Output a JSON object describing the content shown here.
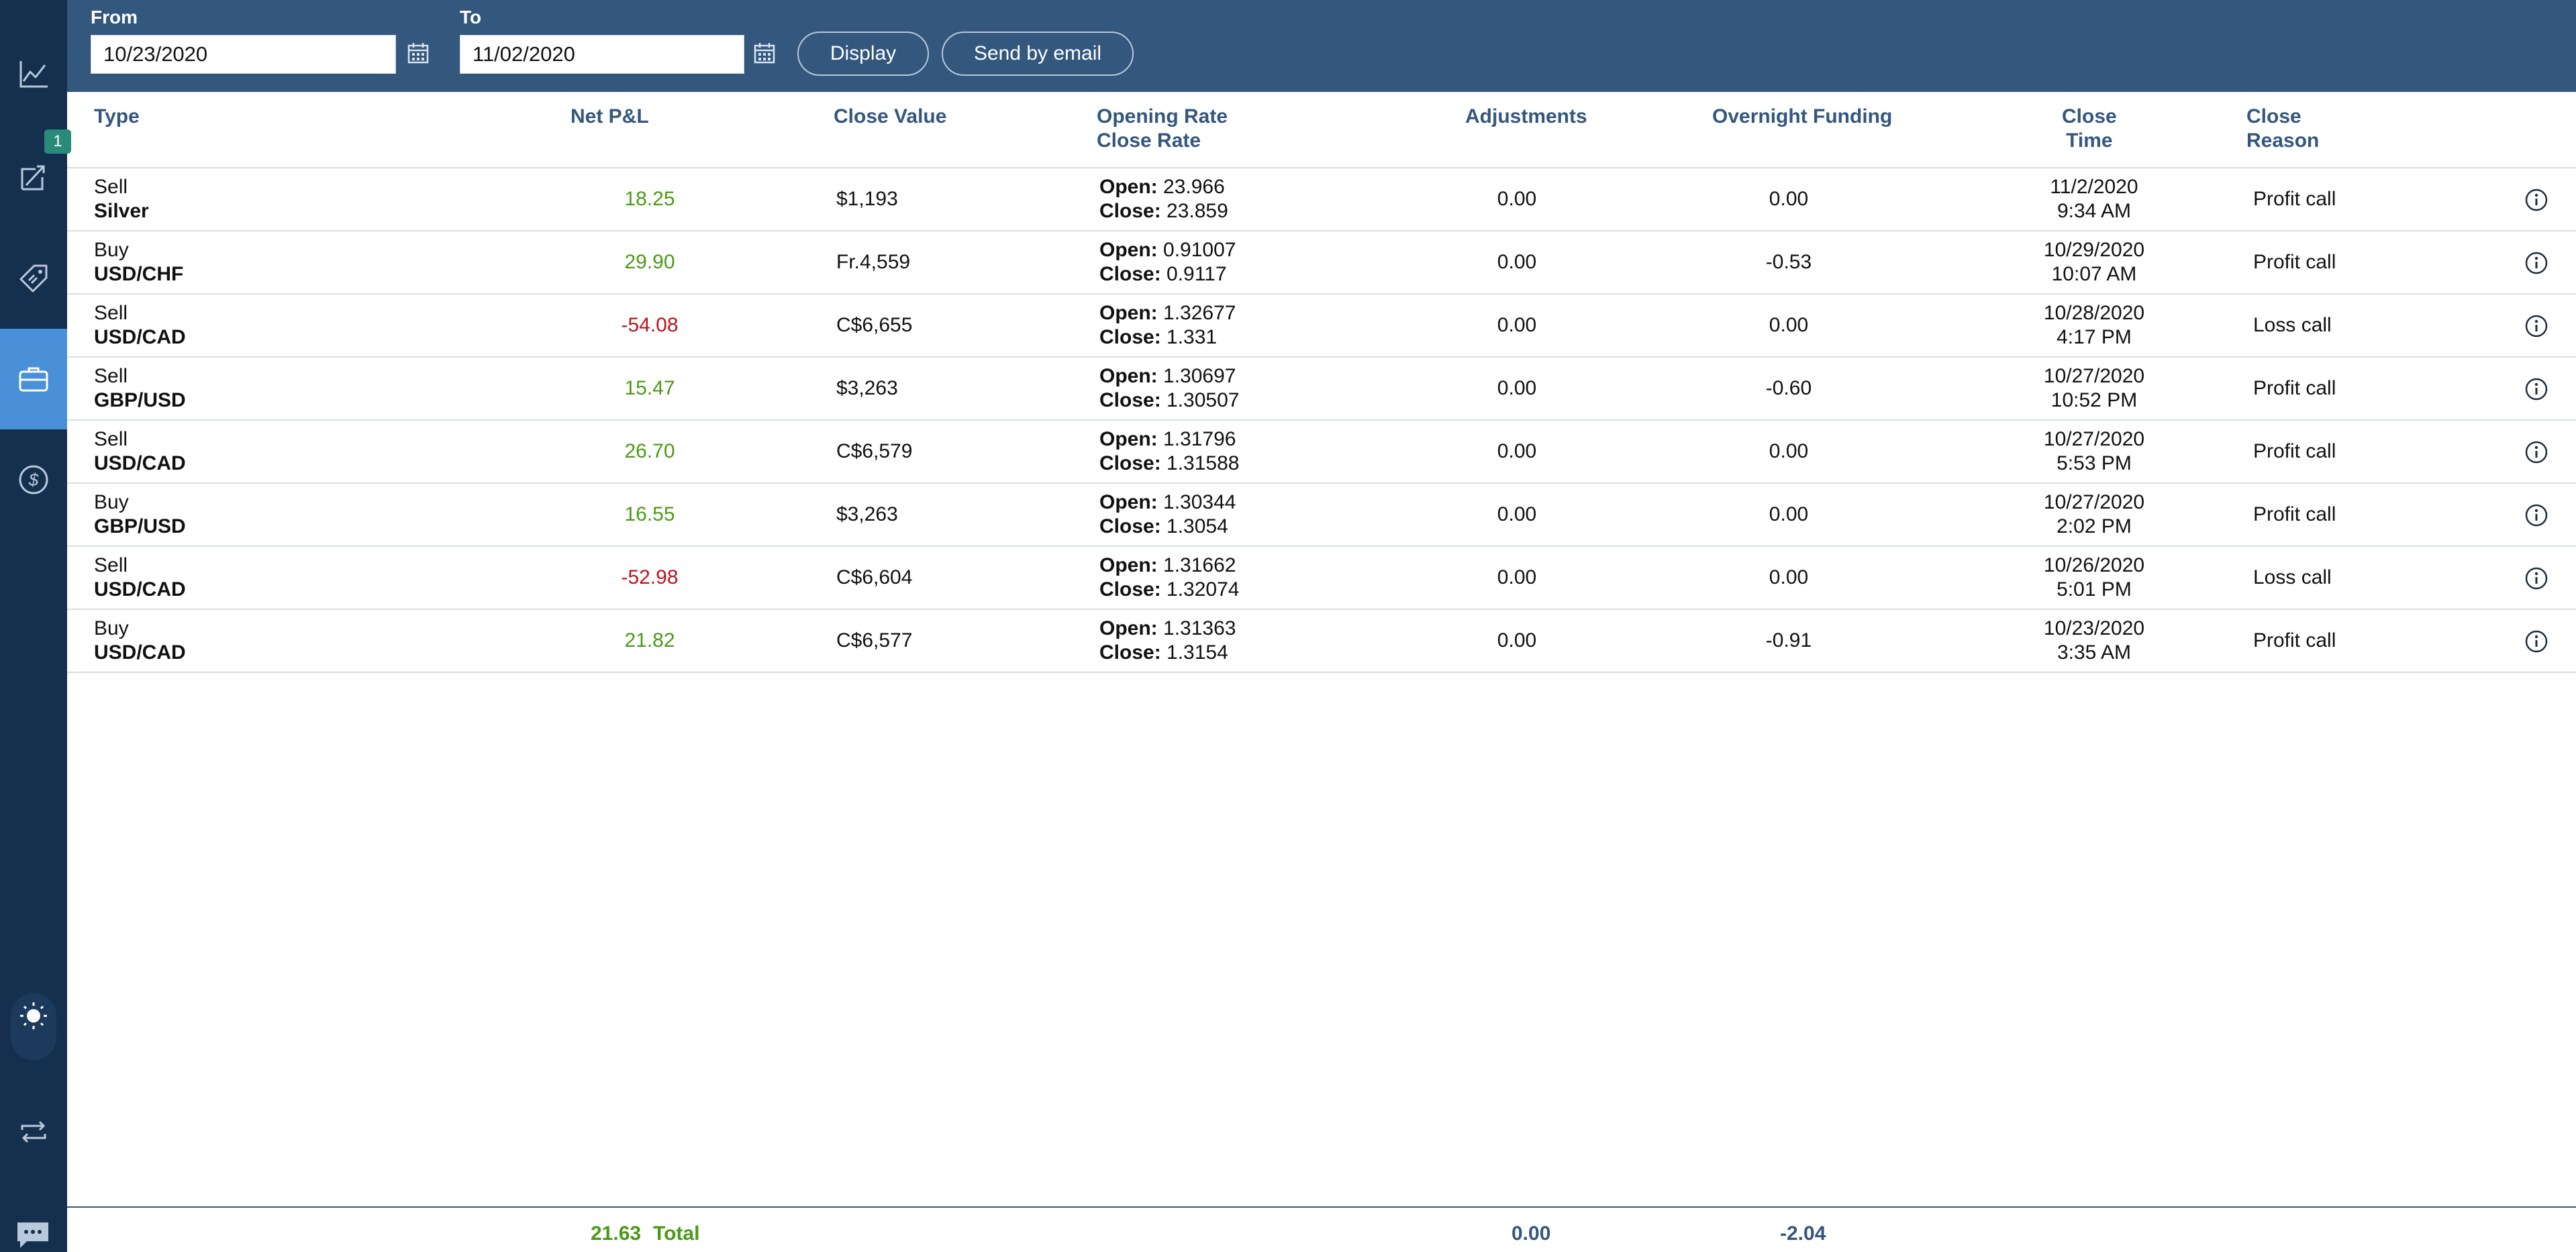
{
  "sidebar": {
    "items": [
      {
        "icon": "chart-line-icon"
      },
      {
        "icon": "positions-icon",
        "badge": "1"
      },
      {
        "icon": "price-tag-icon"
      },
      {
        "icon": "briefcase-icon",
        "active": true
      },
      {
        "icon": "dollar-icon"
      },
      {
        "icon": "theme-toggle-icon"
      },
      {
        "icon": "swap-icon"
      },
      {
        "icon": "chat-icon"
      }
    ]
  },
  "filters": {
    "from_label": "From",
    "from_value": "10/23/2020",
    "to_label": "To",
    "to_value": "11/02/2020",
    "display_label": "Display",
    "email_label": "Send by email"
  },
  "table": {
    "headers": {
      "type": "Type",
      "net_pnl": "Net P&L",
      "close_value": "Close Value",
      "opening_rate": "Opening Rate",
      "close_rate": "Close Rate",
      "adjustments": "Adjustments",
      "overnight_funding": "Overnight Funding",
      "close_time_1": "Close",
      "close_time_2": "Time",
      "close_reason_1": "Close",
      "close_reason_2": "Reason"
    },
    "open_prefix": "Open:",
    "close_prefix": "Close:",
    "rows": [
      {
        "side": "Sell",
        "instrument": "Silver",
        "pnl": "18.25",
        "negative": false,
        "close_value": "$1,193",
        "open": "23.966",
        "close": "23.859",
        "adjustments": "0.00",
        "overnight": "0.00",
        "date": "11/2/2020",
        "time": "9:34 AM",
        "reason": "Profit call"
      },
      {
        "side": "Buy",
        "instrument": "USD/CHF",
        "pnl": "29.90",
        "negative": false,
        "close_value": "Fr.4,559",
        "open": "0.91007",
        "close": "0.9117",
        "adjustments": "0.00",
        "overnight": "-0.53",
        "date": "10/29/2020",
        "time": "10:07 AM",
        "reason": "Profit call"
      },
      {
        "side": "Sell",
        "instrument": "USD/CAD",
        "pnl": "-54.08",
        "negative": true,
        "close_value": "C$6,655",
        "open": "1.32677",
        "close": "1.331",
        "adjustments": "0.00",
        "overnight": "0.00",
        "date": "10/28/2020",
        "time": "4:17 PM",
        "reason": "Loss call"
      },
      {
        "side": "Sell",
        "instrument": "GBP/USD",
        "pnl": "15.47",
        "negative": false,
        "close_value": "$3,263",
        "open": "1.30697",
        "close": "1.30507",
        "adjustments": "0.00",
        "overnight": "-0.60",
        "date": "10/27/2020",
        "time": "10:52 PM",
        "reason": "Profit call"
      },
      {
        "side": "Sell",
        "instrument": "USD/CAD",
        "pnl": "26.70",
        "negative": false,
        "close_value": "C$6,579",
        "open": "1.31796",
        "close": "1.31588",
        "adjustments": "0.00",
        "overnight": "0.00",
        "date": "10/27/2020",
        "time": "5:53 PM",
        "reason": "Profit call"
      },
      {
        "side": "Buy",
        "instrument": "GBP/USD",
        "pnl": "16.55",
        "negative": false,
        "close_value": "$3,263",
        "open": "1.30344",
        "close": "1.3054",
        "adjustments": "0.00",
        "overnight": "0.00",
        "date": "10/27/2020",
        "time": "2:02 PM",
        "reason": "Profit call"
      },
      {
        "side": "Sell",
        "instrument": "USD/CAD",
        "pnl": "-52.98",
        "negative": true,
        "close_value": "C$6,604",
        "open": "1.31662",
        "close": "1.32074",
        "adjustments": "0.00",
        "overnight": "0.00",
        "date": "10/26/2020",
        "time": "5:01 PM",
        "reason": "Loss call"
      },
      {
        "side": "Buy",
        "instrument": "USD/CAD",
        "pnl": "21.82",
        "negative": false,
        "close_value": "C$6,577",
        "open": "1.31363",
        "close": "1.3154",
        "adjustments": "0.00",
        "overnight": "-0.91",
        "date": "10/23/2020",
        "time": "3:35 AM",
        "reason": "Profit call"
      }
    ]
  },
  "totals": {
    "pnl": "21.63",
    "label": "Total",
    "adjustments": "0.00",
    "overnight": "-2.04"
  },
  "colors": {
    "rail": "#15304e",
    "topbar": "#34577e",
    "active": "#4a90d9",
    "positive": "#4a9a16",
    "negative": "#c0121d"
  }
}
